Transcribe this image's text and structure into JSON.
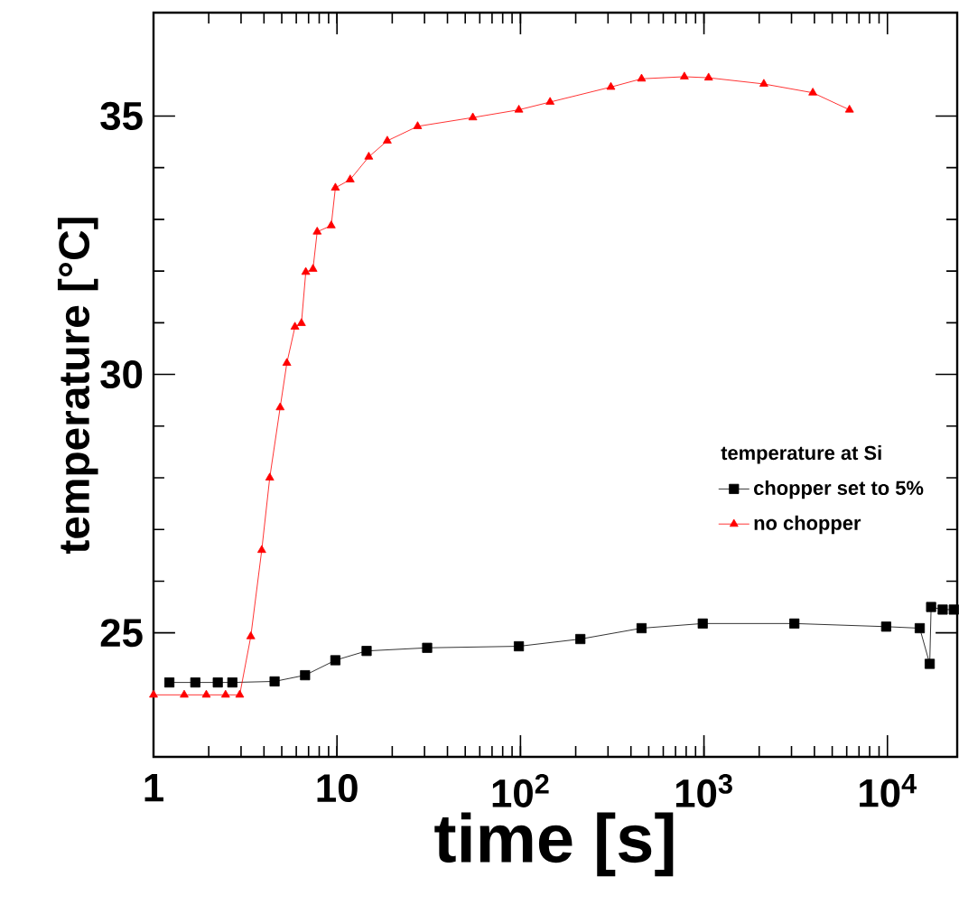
{
  "chart_data": {
    "type": "line",
    "line_style": "solid",
    "xlabel": "time [s]",
    "ylabel": "temperature [°C]",
    "legend_title": "temperature at Si",
    "legend": "right",
    "log": "x",
    "grid": false,
    "xlim": [
      1,
      24000
    ],
    "ylim": [
      22.6,
      37
    ],
    "xticks": [
      {
        "value": 1,
        "label": "1"
      },
      {
        "value": 10,
        "label": "10"
      },
      {
        "value": 100,
        "label": "10$^{2}$"
      },
      {
        "value": 1000,
        "label": "10$^{3}$"
      },
      {
        "value": 10000,
        "label": "10$^{4}$"
      }
    ],
    "yticks": [
      25,
      30,
      35
    ],
    "series": [
      {
        "name": "chopper set to 5%",
        "color": "#000000",
        "marker": "square",
        "x": [
          1.22,
          1.69,
          2.24,
          2.69,
          4.57,
          6.7,
          9.8,
          14.5,
          31,
          98,
          212,
          457,
          985,
          3110,
          9840,
          15000,
          17000,
          17300,
          20000,
          23000
        ],
        "values": [
          24.04,
          24.04,
          24.04,
          24.04,
          24.06,
          24.18,
          24.47,
          24.65,
          24.71,
          24.74,
          24.88,
          25.09,
          25.18,
          25.18,
          25.12,
          25.09,
          24.4,
          25.5,
          25.45,
          25.45
        ]
      },
      {
        "name": "no chopper",
        "color": "#ff0000",
        "marker": "triangle",
        "x": [
          1,
          1.47,
          1.94,
          2.47,
          2.95,
          3.39,
          3.89,
          4.3,
          4.9,
          5.33,
          5.9,
          6.4,
          6.76,
          7.4,
          7.8,
          9.3,
          9.8,
          11.8,
          14.9,
          18.8,
          27.5,
          55,
          98,
          145,
          311,
          457,
          782,
          1060,
          2120,
          3920,
          6210
        ],
        "values": [
          23.8,
          23.8,
          23.8,
          23.8,
          23.8,
          24.93,
          26.6,
          28.0,
          29.36,
          30.22,
          30.92,
          30.99,
          31.98,
          32.04,
          32.76,
          32.88,
          33.61,
          33.77,
          34.21,
          34.52,
          34.8,
          34.97,
          35.12,
          35.27,
          35.56,
          35.72,
          35.76,
          35.74,
          35.62,
          35.45,
          35.12
        ]
      }
    ]
  }
}
